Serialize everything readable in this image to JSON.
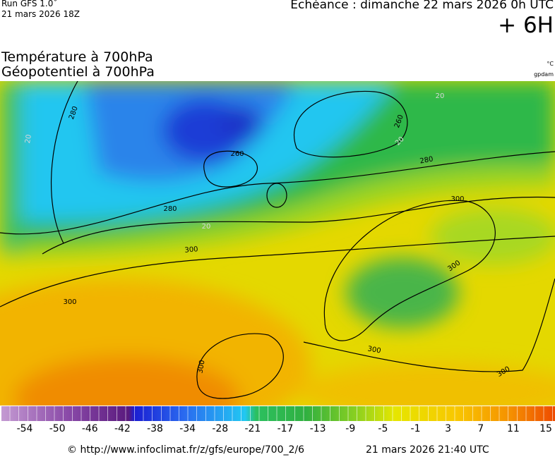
{
  "header": {
    "run": "Run GFS 1.0˚",
    "run_time": "21 mars 2026 18Z",
    "valid": "Echéance : dimanche 22 mars 2026 0h UTC",
    "lead": "+ 6H"
  },
  "title": {
    "line1": "Température à 700hPa",
    "line2": "Géopotentiel à 700hPa",
    "unit1": "°C",
    "unit2": "gpdam"
  },
  "map": {
    "contour_labels": [
      "280",
      "260",
      "260",
      "280",
      "280",
      "300",
      "300",
      "300",
      "300",
      "300",
      "300",
      "300",
      "20",
      "20",
      "20",
      "20"
    ]
  },
  "scale": {
    "labels": [
      -54,
      -50,
      -46,
      -42,
      -38,
      -34,
      -28,
      -21,
      -17,
      -13,
      -9,
      -5,
      -1,
      3,
      7,
      11,
      15
    ]
  },
  "footer": {
    "source": "© http://www.infoclimat.fr/z/gfs/europe/700_2/6",
    "timestamp": "21 mars 2026 21:40 UTC"
  }
}
